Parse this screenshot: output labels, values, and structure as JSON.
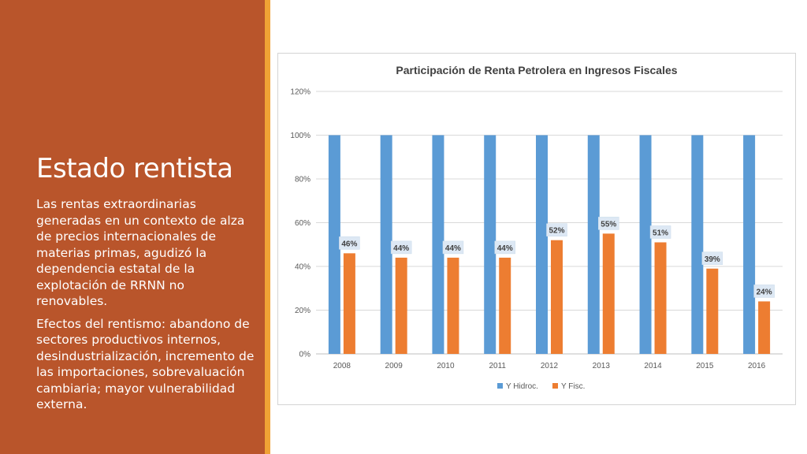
{
  "slide": {
    "title": "Estado rentista",
    "paragraphs": [
      "Las rentas extraordinarias generadas en un contexto de alza de precios internacionales de materias primas, agudizó la dependencia estatal de la explotación de RRNN no renovables.",
      "Efectos del rentismo: abandono de sectores productivos internos, desindustrialización, incremento de las importaciones,  sobrevaluación cambiaria; mayor vulnerabilidad externa."
    ]
  },
  "colors": {
    "panel": "#b9552b",
    "accent": "#f0a235",
    "series_hidroc": "#5b9bd5",
    "series_fisc": "#ed7d31"
  },
  "chart_data": {
    "type": "bar",
    "title": "Participación de Renta Petrolera en Ingresos Fiscales",
    "xlabel": "",
    "ylabel": "",
    "categories": [
      "2008",
      "2009",
      "2010",
      "2011",
      "2012",
      "2013",
      "2014",
      "2015",
      "2016"
    ],
    "series": [
      {
        "name": "Y Hidroc.",
        "values": [
          100,
          100,
          100,
          100,
          100,
          100,
          100,
          100,
          100
        ],
        "color": "#5b9bd5"
      },
      {
        "name": "Y Fisc.",
        "values": [
          46,
          44,
          44,
          44,
          52,
          55,
          51,
          39,
          24
        ],
        "color": "#ed7d31",
        "labels": [
          "46%",
          "44%",
          "44%",
          "44%",
          "52%",
          "55%",
          "51%",
          "39%",
          "24%"
        ]
      }
    ],
    "ylim": [
      0,
      120
    ],
    "yticks": [
      "0%",
      "20%",
      "40%",
      "60%",
      "80%",
      "100%",
      "120%"
    ],
    "grid": true,
    "legend": "bottom"
  }
}
